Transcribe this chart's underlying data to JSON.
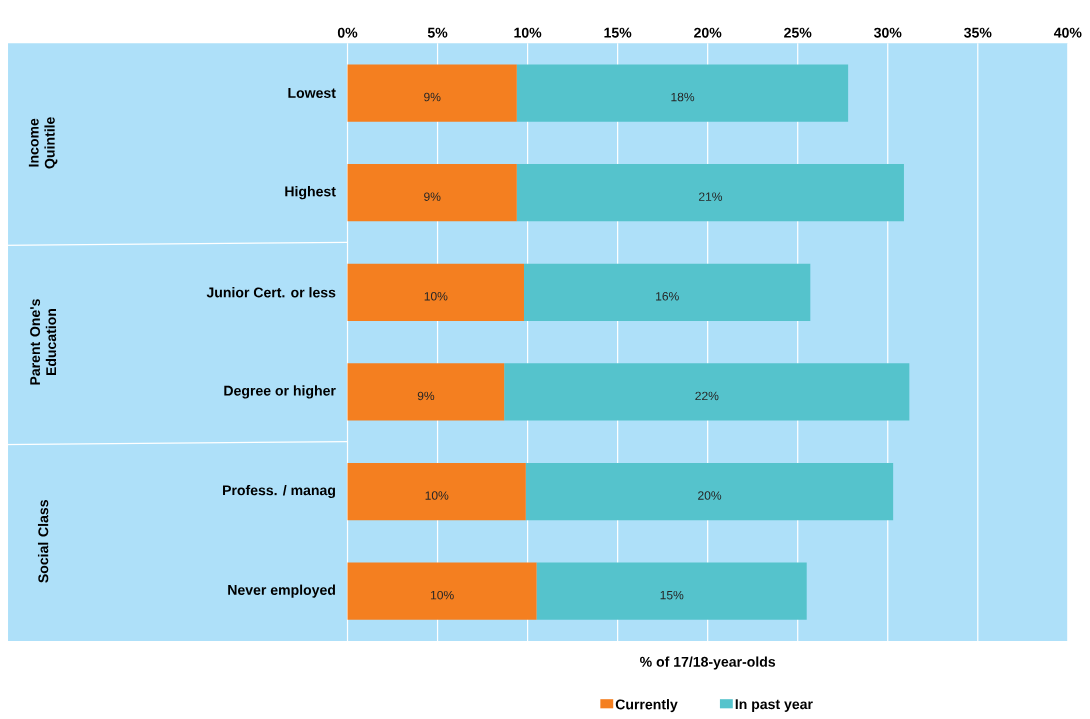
{
  "chart_data": {
    "type": "bar",
    "orientation": "horizontal",
    "stacked": true,
    "categories": [
      "Lowest",
      "Highest",
      "Junior Cert. or less",
      "Degree or higher",
      "Profess. / manag",
      "Never employed"
    ],
    "series": [
      {
        "name": "Currently",
        "color": "#f47f20",
        "values": [
          9.4,
          9.4,
          9.8,
          8.7,
          9.9,
          10.5
        ],
        "value_labels": [
          "9%",
          "9%",
          "10%",
          "9%",
          "10%",
          "10%"
        ]
      },
      {
        "name": "In past year",
        "color": "#55c3cc",
        "values": [
          18.4,
          21.5,
          15.9,
          22.5,
          20.4,
          15.0
        ],
        "value_labels": [
          "18%",
          "21%",
          "16%",
          "22%",
          "20%",
          "15%"
        ]
      }
    ],
    "xlim": [
      0,
      40
    ],
    "xticks": [
      {
        "value": 0,
        "label": "0%"
      },
      {
        "value": 5,
        "label": "5%"
      },
      {
        "value": 10,
        "label": "10%"
      },
      {
        "value": 15,
        "label": "15%"
      },
      {
        "value": 20,
        "label": "20%"
      },
      {
        "value": 25,
        "label": "25%"
      },
      {
        "value": 30,
        "label": "30%"
      },
      {
        "value": 35,
        "label": "35%"
      },
      {
        "value": 40,
        "label": "40%"
      }
    ],
    "xlabel": "% of 17/18-year-olds",
    "grid": "x",
    "legend": "bottom",
    "annotations": [
      "Income Quintile",
      "Parent One's Education",
      "Social Class"
    ]
  }
}
